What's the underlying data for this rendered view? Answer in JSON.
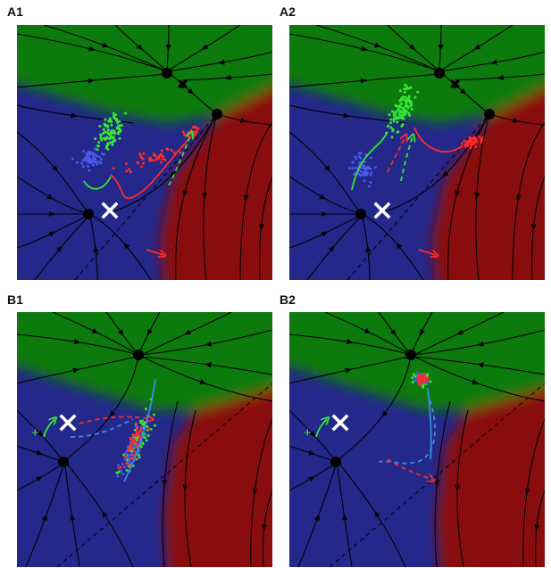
{
  "panels": [
    {
      "label": "A1",
      "variant": "A",
      "cloud": "split"
    },
    {
      "label": "A2",
      "variant": "A",
      "cloud": "split2"
    },
    {
      "label": "B1",
      "variant": "B",
      "cloud": "diag"
    },
    {
      "label": "B2",
      "variant": "B",
      "cloud": "top"
    }
  ],
  "markers": {
    "plus": "+"
  },
  "colors": {
    "green_region": "#0a7a0a",
    "blue_region": "#24288a",
    "red_region": "#8a0808",
    "green_dots": "#36e636",
    "blue_dots": "#4a5ae6",
    "red_dots": "#ff2a2a",
    "cross": "#ffffff",
    "trajectory_blue": "#3a8ae0"
  }
}
